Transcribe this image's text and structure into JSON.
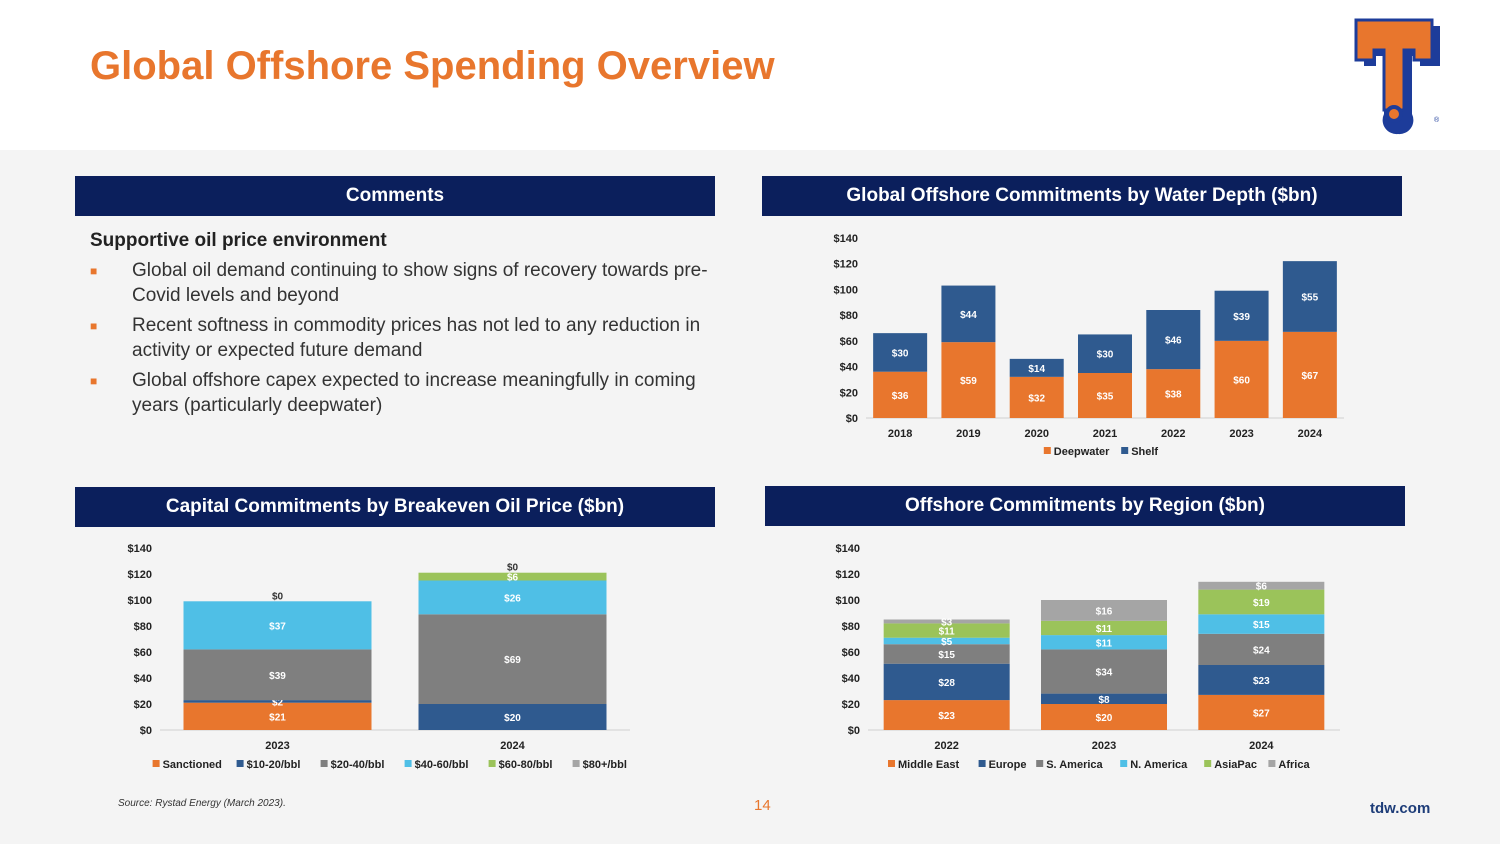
{
  "page": {
    "title": "Global Offshore Spending Overview",
    "source": "Source: Rystad Energy (March 2023).",
    "page_number": "14",
    "website": "tdw.com",
    "logo_letter": "T",
    "logo_mark": "®"
  },
  "colors": {
    "orange": "#e8762d",
    "navy": "#0b1f5c",
    "blue": "#2f5a8f",
    "gray": "#7f7f7f",
    "light_blue": "#4fbfe6",
    "green": "#9bc35a",
    "light_gray": "#a5a5a5"
  },
  "panels": {
    "comments_header": "Comments",
    "water_depth_header": "Global Offshore Commitments by Water Depth ($bn)",
    "breakeven_header": "Capital Commitments by Breakeven Oil Price ($bn)",
    "region_header": "Offshore Commitments by Region ($bn)"
  },
  "comments": {
    "heading": "Supportive oil price environment",
    "bullets": [
      "Global oil demand continuing to show signs of recovery towards pre-Covid levels and beyond",
      "Recent softness in commodity prices has not led to any reduction in activity or expected future demand",
      "Global offshore capex expected to increase meaningfully in coming years (particularly deepwater)"
    ]
  },
  "chart_data": [
    {
      "id": "water_depth",
      "type": "bar",
      "stacked": true,
      "title": "Global Offshore Commitments by Water Depth ($bn)",
      "categories": [
        "2018",
        "2019",
        "2020",
        "2021",
        "2022",
        "2023",
        "2024"
      ],
      "series": [
        {
          "name": "Deepwater",
          "color": "#e8762d",
          "label_color": "#ffffff",
          "values": [
            36,
            59,
            32,
            35,
            38,
            60,
            67
          ],
          "labels": [
            "$36",
            "$59",
            "$32",
            "$35",
            "$38",
            "$60",
            "$67"
          ]
        },
        {
          "name": "Shelf",
          "color": "#2f5a8f",
          "label_color": "#ffffff",
          "values": [
            30,
            44,
            14,
            30,
            46,
            39,
            55
          ],
          "labels": [
            "$30",
            "$44",
            "$14",
            "$30",
            "$46",
            "$39",
            "$55"
          ]
        }
      ],
      "ylim": [
        0,
        140
      ],
      "yticks": [
        "$0",
        "$20",
        "$40",
        "$60",
        "$80",
        "$100",
        "$120",
        "$140"
      ],
      "legend": "bottom"
    },
    {
      "id": "breakeven",
      "type": "bar",
      "stacked": true,
      "title": "Capital Commitments by Breakeven Oil Price ($bn)",
      "categories": [
        "2023",
        "2024"
      ],
      "series": [
        {
          "name": "Sanctioned",
          "color": "#e8762d",
          "label_color": "#ffffff",
          "values": [
            21,
            0
          ],
          "labels": [
            "$21",
            ""
          ]
        },
        {
          "name": "$10-20/bbl",
          "color": "#2f5a8f",
          "label_color": "#ffffff",
          "values": [
            2,
            20
          ],
          "labels": [
            "$2",
            "$20"
          ]
        },
        {
          "name": "$20-40/bbl",
          "color": "#7f7f7f",
          "label_color": "#ffffff",
          "values": [
            39,
            69
          ],
          "labels": [
            "$39",
            "$69"
          ]
        },
        {
          "name": "$40-60/bbl",
          "color": "#4fbfe6",
          "label_color": "#ffffff",
          "values": [
            37,
            26
          ],
          "labels": [
            "$37",
            "$26"
          ]
        },
        {
          "name": "$60-80/bbl",
          "color": "#9bc35a",
          "label_color": "#ffffff",
          "values": [
            0,
            6
          ],
          "labels": [
            "",
            "$6"
          ]
        },
        {
          "name": "$80+/bbl",
          "color": "#a5a5a5",
          "label_color": "#333333",
          "values": [
            0,
            0
          ],
          "labels": [
            "$0",
            "$0"
          ]
        }
      ],
      "ylim": [
        0,
        140
      ],
      "yticks": [
        "$0",
        "$20",
        "$40",
        "$60",
        "$80",
        "$100",
        "$120",
        "$140"
      ],
      "legend": "bottom"
    },
    {
      "id": "region",
      "type": "bar",
      "stacked": true,
      "title": "Offshore Commitments by Region ($bn)",
      "categories": [
        "2022",
        "2023",
        "2024"
      ],
      "series": [
        {
          "name": "Middle East",
          "color": "#e8762d",
          "label_color": "#ffffff",
          "values": [
            23,
            20,
            27
          ],
          "labels": [
            "$23",
            "$20",
            "$27"
          ]
        },
        {
          "name": "Europe",
          "color": "#2f5a8f",
          "label_color": "#ffffff",
          "values": [
            28,
            8,
            23
          ],
          "labels": [
            "$28",
            "$8",
            "$23"
          ]
        },
        {
          "name": "S. America",
          "color": "#7f7f7f",
          "label_color": "#ffffff",
          "values": [
            15,
            34,
            24
          ],
          "labels": [
            "$15",
            "$34",
            "$24"
          ]
        },
        {
          "name": "N. America",
          "color": "#4fbfe6",
          "label_color": "#ffffff",
          "values": [
            5,
            11,
            15
          ],
          "labels": [
            "$5",
            "$11",
            "$15"
          ]
        },
        {
          "name": "AsiaPac",
          "color": "#9bc35a",
          "label_color": "#ffffff",
          "values": [
            11,
            11,
            19
          ],
          "labels": [
            "$11",
            "$11",
            "$19"
          ]
        },
        {
          "name": "Africa",
          "color": "#a5a5a5",
          "label_color": "#ffffff",
          "values": [
            3,
            16,
            6
          ],
          "labels": [
            "$3",
            "$16",
            "$6"
          ]
        }
      ],
      "ylim": [
        0,
        140
      ],
      "yticks": [
        "$0",
        "$20",
        "$40",
        "$60",
        "$80",
        "$100",
        "$120",
        "$140"
      ],
      "legend": "bottom"
    }
  ]
}
